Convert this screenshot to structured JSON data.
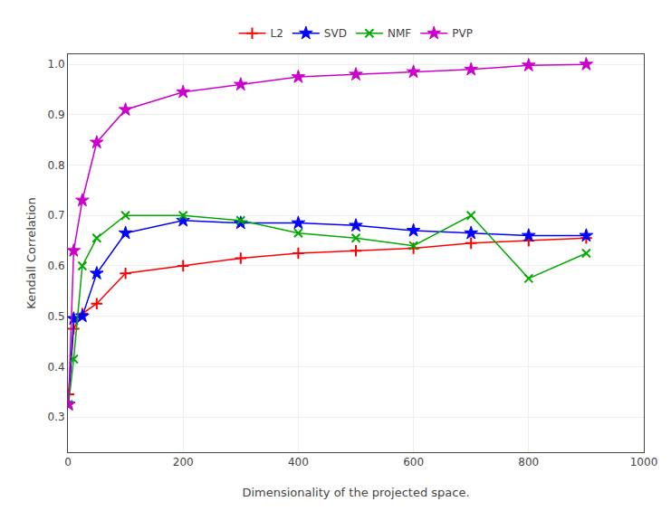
{
  "chart_data": {
    "type": "line",
    "x": [
      1,
      10,
      25,
      50,
      100,
      200,
      300,
      400,
      500,
      600,
      700,
      800,
      900
    ],
    "series": [
      {
        "name": "L2",
        "color": "#ff0000",
        "marker": "plus",
        "values": [
          0.345,
          0.475,
          0.505,
          0.525,
          0.585,
          0.6,
          0.615,
          0.625,
          0.63,
          0.635,
          0.645,
          0.65,
          0.655
        ]
      },
      {
        "name": "SVD",
        "color": "#0000ff",
        "marker": "star",
        "values": [
          0.325,
          0.495,
          0.5,
          0.585,
          0.665,
          0.69,
          0.685,
          0.685,
          0.68,
          0.67,
          0.665,
          0.66,
          0.66
        ]
      },
      {
        "name": "NMF",
        "color": "#00aa00",
        "marker": "x",
        "values": [
          0.325,
          0.415,
          0.6,
          0.655,
          0.7,
          0.7,
          0.69,
          0.665,
          0.655,
          0.64,
          0.7,
          0.575,
          0.625
        ]
      },
      {
        "name": "PVP",
        "color": "#cc00cc",
        "marker": "star",
        "values": [
          0.325,
          0.63,
          0.73,
          0.845,
          0.91,
          0.945,
          0.96,
          0.975,
          0.98,
          0.985,
          0.99,
          0.998,
          1.0
        ]
      }
    ],
    "xlabel": "Dimensionality of the projected space.",
    "ylabel": "Kendall Correlation",
    "xlim": [
      0,
      1000
    ],
    "ylim": [
      0.23,
      1.02
    ],
    "xticks": [
      0,
      200,
      400,
      600,
      800,
      1000
    ],
    "yticks": [
      0.3,
      0.4,
      0.5,
      0.6,
      0.7,
      0.8,
      0.9,
      {
        "value": 1.0,
        "label": "1.0"
      }
    ],
    "grid": true,
    "legend": "top"
  }
}
